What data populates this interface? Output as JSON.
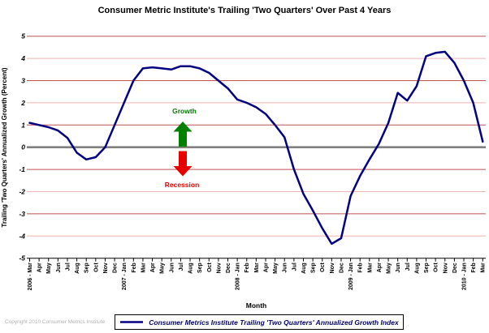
{
  "title": "Consumer Metric Institute's Trailing 'Two Quarters' Over Past 4 Years",
  "copyright": "Copyright 2010 Consumer Metrics Institute",
  "legend": {
    "label": "Consumer Metrics Institute Trailing 'Two Quarters' Annualized Growth Index"
  },
  "colors": {
    "line": "#000080",
    "grid_major": "#c25252",
    "grid_minor": "#f0b2b2",
    "zero_line": "#808080",
    "axis": "#000000",
    "growth": "#008000",
    "recession": "#e60000",
    "legend_text": "#000066",
    "copyright_text": "#b0b0b0"
  },
  "chart_data": {
    "type": "line",
    "title": "Consumer Metric Institute's Trailing 'Two Quarters' Over Past 4 Years",
    "xlabel": "Month",
    "ylabel": "Trailing 'Two Quarters' Annualized Growth (Percent)",
    "ylim": [
      -5,
      5
    ],
    "yticks": [
      5,
      4,
      3,
      2,
      1,
      0,
      -1,
      -2,
      -3,
      -4,
      -5
    ],
    "grid": "horizontal red gridlines at integers, thick gray line at zero, black x-axis with per-month ticks",
    "legend_position": "bottom",
    "annotations": {
      "growth": "Growth",
      "recession": "Recession"
    },
    "categories": [
      "2006 - Mar",
      "Apr",
      "May",
      "Jun",
      "Jul",
      "Aug",
      "Sep",
      "Oct",
      "Nov",
      "Dec",
      "2007 - Jan",
      "Feb",
      "Mar",
      "Apr",
      "May",
      "Jun",
      "Jul",
      "Aug",
      "Sep",
      "Oct",
      "Nov",
      "Dec",
      "2008 - Jan",
      "Feb",
      "Mar",
      "Apr",
      "May",
      "Jun",
      "Jul",
      "Aug",
      "Sep",
      "Oct",
      "Nov",
      "Dec",
      "2009 - Jan",
      "Feb",
      "Mar",
      "Apr",
      "May",
      "Jun",
      "Jul",
      "Aug",
      "Sep",
      "Oct",
      "Nov",
      "Dec",
      "2010 - Jan",
      "Feb",
      "Mar"
    ],
    "series": [
      {
        "name": "Consumer Metrics Institute Trailing 'Two Quarters' Annualized Growth Index",
        "color": "#000080",
        "values": [
          1.1,
          1.0,
          0.9,
          0.75,
          0.42,
          -0.25,
          -0.55,
          -0.45,
          0.0,
          1.0,
          2.0,
          3.0,
          3.55,
          3.6,
          3.55,
          3.5,
          3.65,
          3.65,
          3.55,
          3.35,
          3.0,
          2.65,
          2.15,
          2.0,
          1.8,
          1.5,
          1.0,
          0.45,
          -1.0,
          -2.1,
          -2.85,
          -3.65,
          -4.35,
          -4.1,
          -2.2,
          -1.3,
          -0.55,
          0.15,
          1.1,
          2.45,
          2.1,
          2.75,
          4.1,
          4.25,
          4.3,
          3.8,
          3.0,
          2.0,
          0.25
        ]
      }
    ]
  }
}
